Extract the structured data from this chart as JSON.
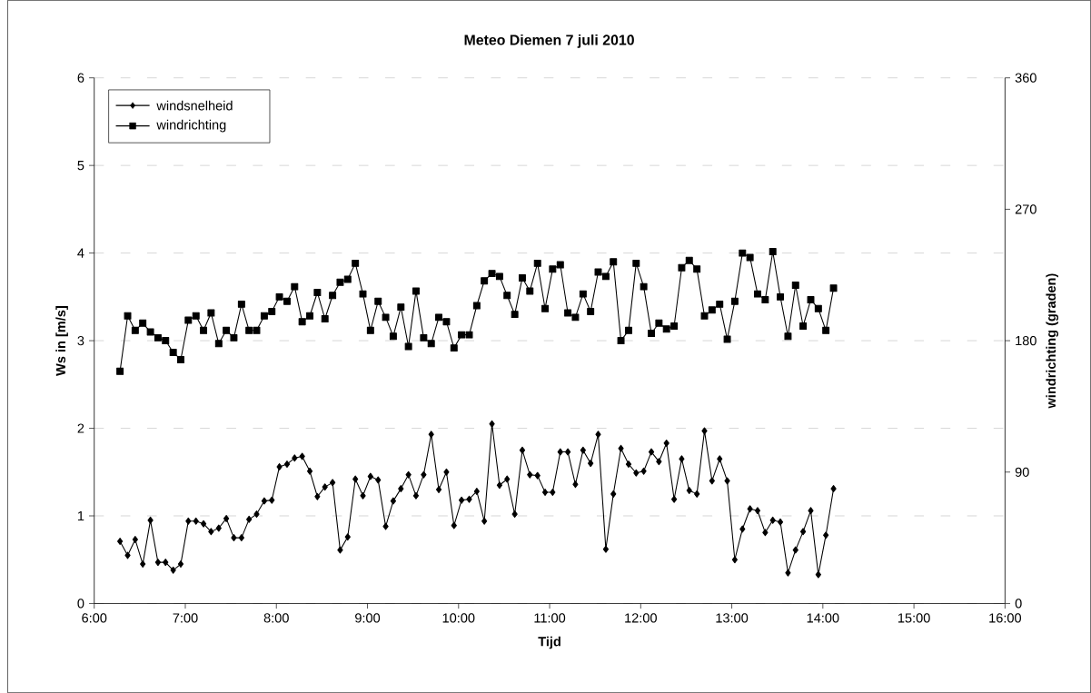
{
  "chart_data": {
    "type": "line",
    "title": "Meteo Diemen 7 juli 2010",
    "xlabel": "Tijd",
    "ylabel": "Ws in [m/s]",
    "y2label": "windrichting (graden)",
    "x": [
      6.283,
      6.367,
      6.45,
      6.533,
      6.617,
      6.7,
      6.783,
      6.867,
      6.95,
      7.033,
      7.117,
      7.2,
      7.283,
      7.367,
      7.45,
      7.533,
      7.617,
      7.7,
      7.783,
      7.867,
      7.95,
      8.033,
      8.117,
      8.2,
      8.283,
      8.367,
      8.45,
      8.533,
      8.617,
      8.7,
      8.783,
      8.867,
      8.95,
      9.033,
      9.117,
      9.2,
      9.283,
      9.367,
      9.45,
      9.533,
      9.617,
      9.7,
      9.783,
      9.867,
      9.95,
      10.033,
      10.117,
      10.2,
      10.283,
      10.367,
      10.45,
      10.533,
      10.617,
      10.7,
      10.783,
      10.867,
      10.95,
      11.033,
      11.117,
      11.2,
      11.283,
      11.367,
      11.45,
      11.533,
      11.617,
      11.7,
      11.783,
      11.867,
      11.95,
      12.033,
      12.117,
      12.2,
      12.283,
      12.367,
      12.45,
      12.533,
      12.617,
      12.7,
      12.783,
      12.867,
      12.95,
      13.033,
      13.117,
      13.2,
      13.283,
      13.367,
      13.45,
      13.533,
      13.617,
      13.7,
      13.783,
      13.867,
      13.95,
      14.033,
      14.117
    ],
    "series": [
      {
        "name": "windsnelheid",
        "color": "#000000",
        "marker": "diamond",
        "values": [
          0.71,
          0.55,
          0.73,
          0.45,
          0.95,
          0.47,
          0.47,
          0.38,
          0.45,
          0.94,
          0.94,
          0.91,
          0.82,
          0.86,
          0.97,
          0.75,
          0.75,
          0.96,
          1.02,
          1.17,
          1.18,
          1.56,
          1.59,
          1.66,
          1.68,
          1.51,
          1.22,
          1.33,
          1.38,
          0.61,
          0.76,
          1.42,
          1.23,
          1.45,
          1.41,
          0.88,
          1.17,
          1.31,
          1.47,
          1.23,
          1.47,
          1.93,
          1.3,
          1.5,
          0.89,
          1.18,
          1.19,
          1.28,
          0.94,
          2.05,
          1.35,
          1.42,
          1.02,
          1.75,
          1.47,
          1.46,
          1.27,
          1.27,
          1.73,
          1.73,
          1.36,
          1.75,
          1.6,
          1.93,
          0.62,
          1.25,
          1.77,
          1.59,
          1.49,
          1.51,
          1.73,
          1.62,
          1.83,
          1.19,
          1.65,
          1.29,
          1.25,
          1.97,
          1.4,
          1.65,
          1.4,
          0.5,
          0.85,
          1.08,
          1.06,
          0.81,
          0.95,
          0.93,
          0.35,
          0.61,
          0.82,
          1.06,
          0.33,
          0.78,
          1.31
        ]
      },
      {
        "name": "windrichting",
        "color": "#000000",
        "marker": "square",
        "axis": "y2",
        "values": [
          159,
          197,
          187,
          192,
          186,
          182,
          180,
          172,
          167,
          194,
          197,
          187,
          199,
          178,
          187,
          182,
          205,
          187,
          187,
          197,
          200,
          210,
          207,
          217,
          193,
          197,
          213,
          195,
          211,
          220,
          222,
          233,
          212,
          187,
          207,
          196,
          183,
          203,
          176,
          214,
          182,
          178,
          196,
          193,
          175,
          184,
          184,
          204,
          221,
          226,
          224,
          211,
          198,
          223,
          214,
          233,
          202,
          229,
          232,
          199,
          196,
          212,
          200,
          227,
          224,
          234,
          180,
          187,
          233,
          217,
          185,
          192,
          188,
          190,
          230,
          235,
          229,
          197,
          201,
          205,
          181,
          207,
          240,
          237,
          212,
          208,
          241,
          210,
          183,
          218,
          190,
          208,
          202,
          187,
          216
        ]
      }
    ],
    "xlim": [
      6,
      16
    ],
    "xticks": [
      {
        "value": 6,
        "label": "6:00"
      },
      {
        "value": 7,
        "label": "7:00"
      },
      {
        "value": 8,
        "label": "8:00"
      },
      {
        "value": 9,
        "label": "9:00"
      },
      {
        "value": 10,
        "label": "10:00"
      },
      {
        "value": 11,
        "label": "11:00"
      },
      {
        "value": 12,
        "label": "12:00"
      },
      {
        "value": 13,
        "label": "13:00"
      },
      {
        "value": 14,
        "label": "14:00"
      },
      {
        "value": 15,
        "label": "15:00"
      },
      {
        "value": 16,
        "label": "16:00"
      }
    ],
    "ylim": [
      0,
      6
    ],
    "yticks": [
      0,
      1,
      2,
      3,
      4,
      5,
      6
    ],
    "y2lim": [
      0,
      360
    ],
    "y2ticks": [
      0,
      90,
      180,
      270,
      360
    ],
    "grid": "y",
    "legend": "top left",
    "line_style": "solid"
  }
}
